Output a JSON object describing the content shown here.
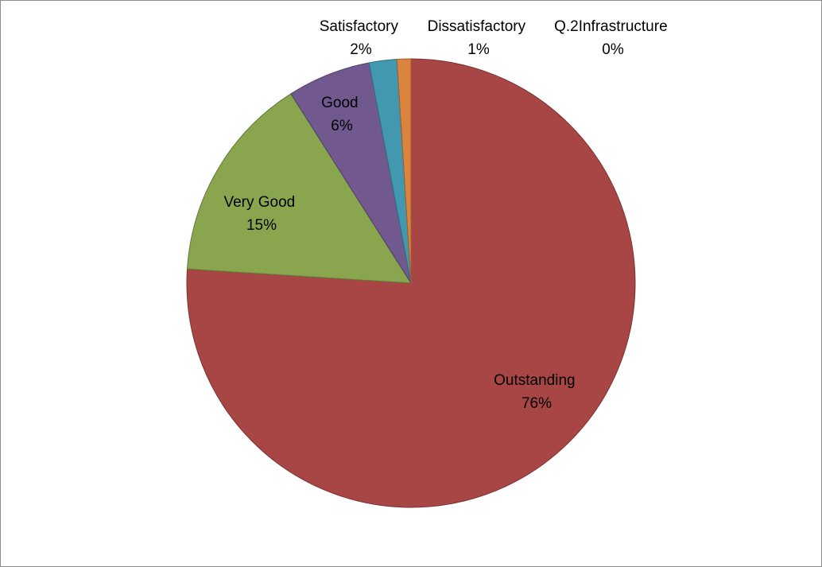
{
  "chart_data": {
    "type": "pie",
    "title": "",
    "start_angle_deg": 0,
    "direction": "clockwise",
    "slices": [
      {
        "label": "Outstanding",
        "value": 76,
        "value_label": "76%",
        "color": "#a84646"
      },
      {
        "label": "Very Good",
        "value": 15,
        "value_label": "15%",
        "color": "#89a54e"
      },
      {
        "label": "Good",
        "value": 6,
        "value_label": "6%",
        "color": "#71588f"
      },
      {
        "label": "Satisfactory",
        "value": 2,
        "value_label": "2%",
        "color": "#4198af"
      },
      {
        "label": "Dissatisfactory",
        "value": 1,
        "value_label": "1%",
        "color": "#db843d"
      },
      {
        "label": "Q.2Infrastructure",
        "value": 0,
        "value_label": "0%",
        "color": "#93a9cf"
      }
    ],
    "legend": "none"
  }
}
